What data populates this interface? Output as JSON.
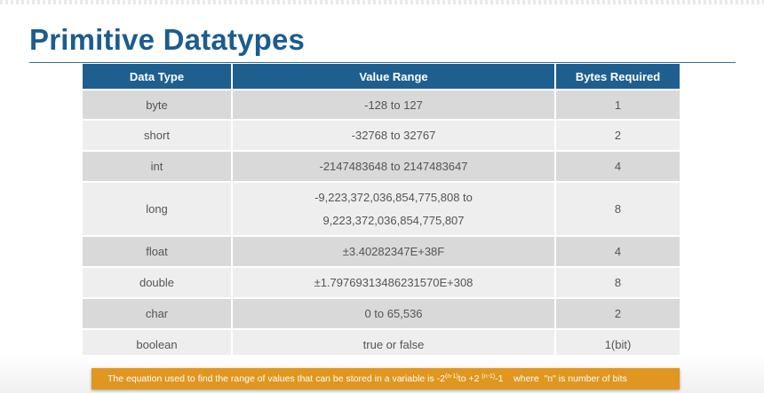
{
  "slide": {
    "title": "Primitive Datatypes",
    "colors": {
      "title": "#1c5c8e",
      "header_bg": "#1f5f8f",
      "row_dark": "#d9d9d9",
      "row_light": "#eeeeee",
      "note_bg": "#e0961f"
    }
  },
  "table": {
    "headers": [
      "Data Type",
      "Value Range",
      "Bytes Required"
    ],
    "rows": [
      {
        "type": "byte",
        "range": "-128 to 127",
        "bytes": "1"
      },
      {
        "type": "short",
        "range": "-32768 to 32767",
        "bytes": "2"
      },
      {
        "type": "int",
        "range": "-2147483648 to 2147483647",
        "bytes": "4"
      },
      {
        "type": "long",
        "range_line1": "-9,223,372,036,854,775,808 to",
        "range_line2": "9,223,372,036,854,775,807",
        "bytes": "8"
      },
      {
        "type": "float",
        "range": "±3.40282347E+38F",
        "bytes": "4"
      },
      {
        "type": "double",
        "range": "±1.79769313486231570E+308",
        "bytes": "8"
      },
      {
        "type": "char",
        "range": "0 to 65,536",
        "bytes": "2"
      },
      {
        "type": "boolean",
        "range": "true or false",
        "bytes": "1(bit)"
      }
    ]
  },
  "note": {
    "prefix": "The equation used to find the range of values that can be stored in a variable is -2",
    "exp1": "(n-1)",
    "mid": "to +2 ",
    "exp2": "(n-1)",
    "suffix": "-1    where  \"n\" is number of bits"
  }
}
